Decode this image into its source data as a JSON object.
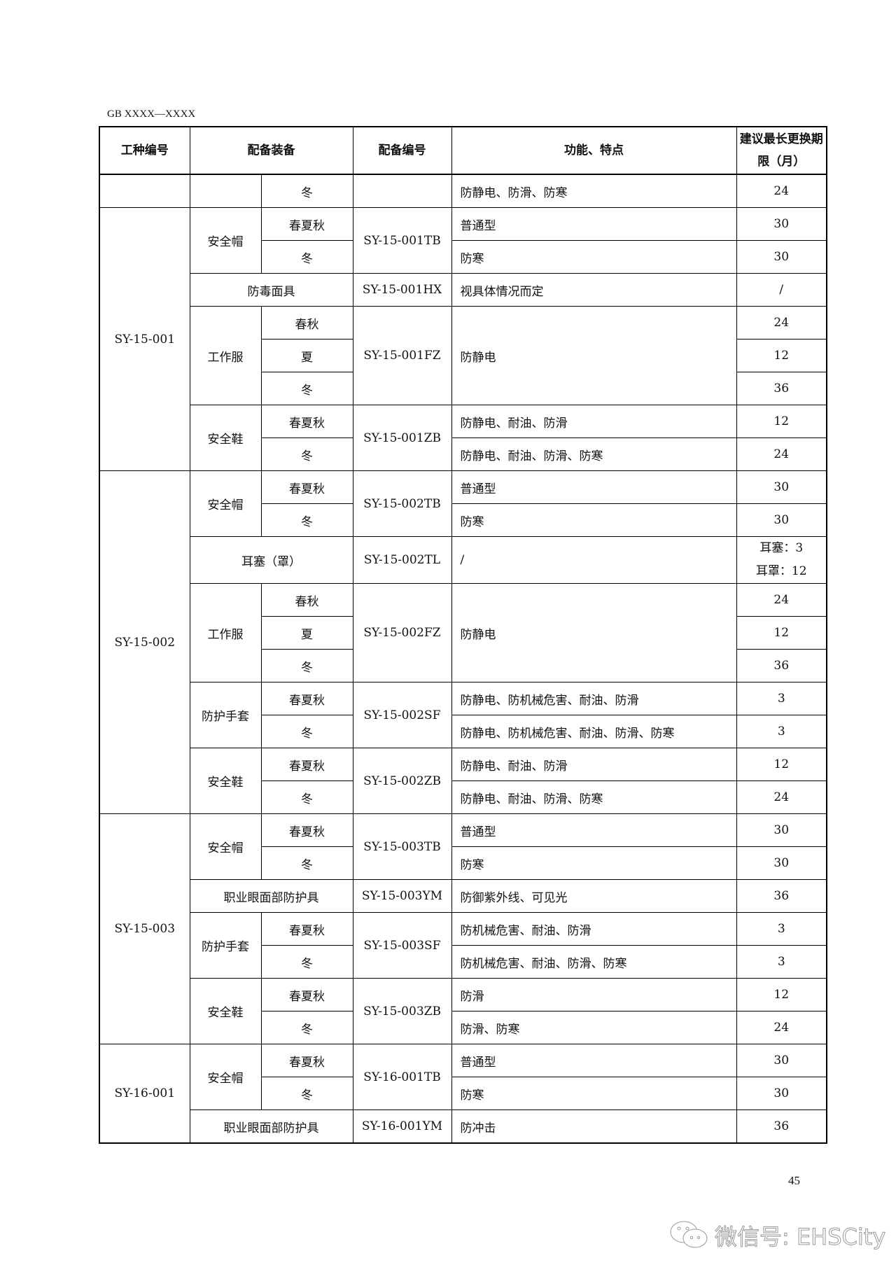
{
  "doc_code": "GB XXXX—XXXX",
  "headers": {
    "work_type": "工种编号",
    "equipment": "配备装备",
    "code": "配备编号",
    "features": "功能、特点",
    "period": "建议最长更换期限（月）"
  },
  "groups": [
    {
      "code": "",
      "items": [
        {
          "equipment": "",
          "code": "",
          "rows": [
            {
              "season": "冬",
              "feature": "防静电、防滑、防寒",
              "period": "24"
            }
          ]
        }
      ]
    },
    {
      "code": "SY-15-001",
      "items": [
        {
          "equipment": "安全帽",
          "code": "SY-15-001TB",
          "rows": [
            {
              "season": "春夏秋",
              "feature": "普通型",
              "period": "30"
            },
            {
              "season": "冬",
              "feature": "防寒",
              "period": "30"
            }
          ]
        },
        {
          "equipment": "防毒面具",
          "code": "SY-15-001HX",
          "rows": [
            {
              "season": "",
              "feature": "视具体情况而定",
              "period": "/"
            }
          ]
        },
        {
          "equipment": "工作服",
          "code": "SY-15-001FZ",
          "feature": "防静电",
          "rows": [
            {
              "season": "春秋",
              "period": "24"
            },
            {
              "season": "夏",
              "period": "12"
            },
            {
              "season": "冬",
              "period": "36"
            }
          ]
        },
        {
          "equipment": "安全鞋",
          "code": "SY-15-001ZB",
          "rows": [
            {
              "season": "春夏秋",
              "feature": "防静电、耐油、防滑",
              "period": "12"
            },
            {
              "season": "冬",
              "feature": "防静电、耐油、防滑、防寒",
              "period": "24"
            }
          ]
        }
      ]
    },
    {
      "code": "SY-15-002",
      "items": [
        {
          "equipment": "安全帽",
          "code": "SY-15-002TB",
          "rows": [
            {
              "season": "春夏秋",
              "feature": "普通型",
              "period": "30"
            },
            {
              "season": "冬",
              "feature": "防寒",
              "period": "30"
            }
          ]
        },
        {
          "equipment": "耳塞（罩）",
          "code": "SY-15-002TL",
          "rows": [
            {
              "season": "",
              "feature": "/",
              "period": "耳塞：3\n耳罩：12"
            }
          ]
        },
        {
          "equipment": "工作服",
          "code": "SY-15-002FZ",
          "feature": "防静电",
          "rows": [
            {
              "season": "春秋",
              "period": "24"
            },
            {
              "season": "夏",
              "period": "12"
            },
            {
              "season": "冬",
              "period": "36"
            }
          ]
        },
        {
          "equipment": "防护手套",
          "code": "SY-15-002SF",
          "rows": [
            {
              "season": "春夏秋",
              "feature": "防静电、防机械危害、耐油、防滑",
              "period": "3"
            },
            {
              "season": "冬",
              "feature": "防静电、防机械危害、耐油、防滑、防寒",
              "period": "3"
            }
          ]
        },
        {
          "equipment": "安全鞋",
          "code": "SY-15-002ZB",
          "rows": [
            {
              "season": "春夏秋",
              "feature": "防静电、耐油、防滑",
              "period": "12"
            },
            {
              "season": "冬",
              "feature": "防静电、耐油、防滑、防寒",
              "period": "24"
            }
          ]
        }
      ]
    },
    {
      "code": "SY-15-003",
      "items": [
        {
          "equipment": "安全帽",
          "code": "SY-15-003TB",
          "rows": [
            {
              "season": "春夏秋",
              "feature": "普通型",
              "period": "30"
            },
            {
              "season": "冬",
              "feature": "防寒",
              "period": "30"
            }
          ]
        },
        {
          "equipment": "职业眼面部防护具",
          "code": "SY-15-003YM",
          "rows": [
            {
              "season": "",
              "feature": "防御紫外线、可见光",
              "period": "36"
            }
          ]
        },
        {
          "equipment": "防护手套",
          "code": "SY-15-003SF",
          "rows": [
            {
              "season": "春夏秋",
              "feature": "防机械危害、耐油、防滑",
              "period": "3"
            },
            {
              "season": "冬",
              "feature": "防机械危害、耐油、防滑、防寒",
              "period": "3"
            }
          ]
        },
        {
          "equipment": "安全鞋",
          "code": "SY-15-003ZB",
          "rows": [
            {
              "season": "春夏秋",
              "feature": "防滑",
              "period": "12"
            },
            {
              "season": "冬",
              "feature": "防滑、防寒",
              "period": "24"
            }
          ]
        }
      ]
    },
    {
      "code": "SY-16-001",
      "items": [
        {
          "equipment": "安全帽",
          "code": "SY-16-001TB",
          "rows": [
            {
              "season": "春夏秋",
              "feature": "普通型",
              "period": "30"
            },
            {
              "season": "冬",
              "feature": "防寒",
              "period": "30"
            }
          ]
        },
        {
          "equipment": "职业眼面部防护具",
          "code": "SY-16-001YM",
          "rows": [
            {
              "season": "",
              "feature": "防冲击",
              "period": "36"
            }
          ]
        }
      ]
    }
  ],
  "page_number": "45",
  "watermark": "微信号: EHSCity"
}
